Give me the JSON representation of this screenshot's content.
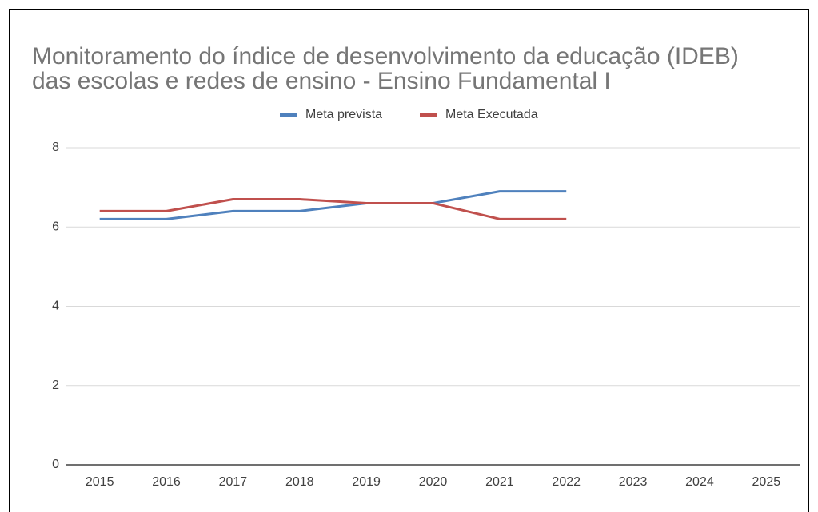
{
  "chart_data": {
    "type": "line",
    "title": [
      "Monitoramento do índice de desenvolvimento da educação (IDEB)",
      "das escolas e redes de ensino - Ensino Fundamental I"
    ],
    "categories": [
      "2015",
      "2016",
      "2017",
      "2018",
      "2019",
      "2020",
      "2021",
      "2022",
      "2023",
      "2024",
      "2025"
    ],
    "series": [
      {
        "name": "Meta prevista",
        "color": "#4f81bd",
        "values": [
          6.2,
          6.2,
          6.4,
          6.4,
          6.6,
          6.6,
          6.9,
          6.9,
          null,
          null,
          null
        ]
      },
      {
        "name": "Meta Executada",
        "color": "#c0504d",
        "values": [
          6.4,
          6.4,
          6.7,
          6.7,
          6.6,
          6.6,
          6.2,
          6.2,
          null,
          null,
          null
        ]
      }
    ],
    "ylim": [
      0,
      8
    ],
    "yticks": [
      0,
      2,
      4,
      6,
      8
    ],
    "grid": true,
    "legend": "top"
  }
}
